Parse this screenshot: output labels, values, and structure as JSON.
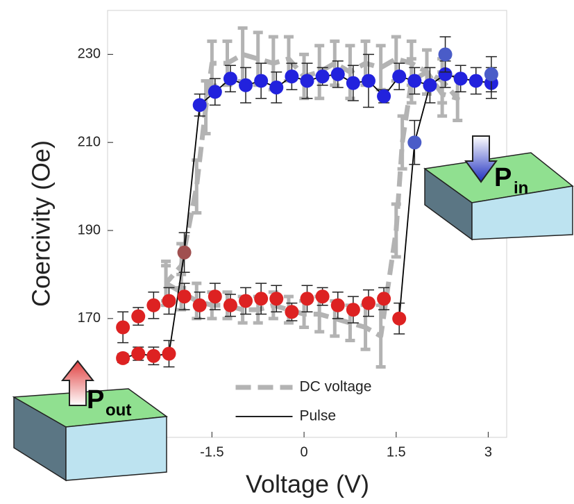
{
  "chart_data": {
    "type": "errorbar_line",
    "xlabel": "Voltage (V)",
    "ylabel": "Coercivity (Oe)",
    "xlim": [
      -3.2,
      3.3
    ],
    "xticks": [
      -1.5,
      0,
      1.5,
      3
    ],
    "ylim": [
      143,
      240
    ],
    "yticks": [
      170,
      190,
      210,
      230
    ],
    "legend": "lower center",
    "series": [
      {
        "name": "DC voltage",
        "color": "#b3b3b3",
        "dashed": true,
        "x": [
          -2.25,
          -2,
          -1.75,
          -1.5,
          -1.25,
          -1,
          -0.75,
          -0.5,
          -0.25,
          0,
          0.25,
          0.5,
          0.75,
          1,
          1.25,
          1.5,
          1.6,
          1.75,
          2,
          2.25,
          2.5,
          2.25,
          2,
          1.75,
          1.5,
          1.25,
          1,
          0.75,
          0.5,
          0.25,
          0,
          -0.25,
          -0.5,
          -0.75,
          -1,
          -1.25,
          -1.5,
          -1.6,
          -1.75,
          -2,
          -2.25
        ],
        "values": [
          178,
          176,
          174,
          173,
          173,
          172,
          172,
          173,
          172,
          171,
          171,
          170,
          169,
          168,
          166,
          190,
          210,
          224,
          226,
          224,
          220,
          221,
          226,
          228,
          229,
          227,
          228,
          226,
          228,
          226,
          225,
          229,
          228,
          229,
          230,
          228,
          228,
          218,
          200,
          182,
          178
        ],
        "errors": [
          4,
          4,
          4,
          3,
          3,
          3,
          3,
          3,
          3,
          3,
          4,
          4,
          4,
          5,
          7,
          6,
          6,
          5,
          5,
          5,
          5,
          5,
          5,
          5,
          5,
          5,
          5,
          6,
          5,
          6,
          5,
          5,
          6,
          6,
          6,
          5,
          5,
          6,
          6,
          5,
          5
        ]
      },
      {
        "name": "Pulse",
        "color": "#000000",
        "dashed": false,
        "x": [
          -2.95,
          -2.7,
          -2.45,
          -2.2,
          -1.95,
          -1.7,
          -1.45,
          -1.2,
          -0.95,
          -0.7,
          -0.45,
          -0.2,
          0.05,
          0.3,
          0.55,
          0.8,
          1.05,
          1.3,
          1.55,
          1.8,
          2.05,
          2.3,
          2.55,
          2.8,
          3.05,
          null,
          1.55,
          1.8,
          2.05
        ],
        "values": [
          161,
          162,
          161.5,
          162,
          185,
          218.5,
          221.5,
          224.5,
          223,
          224,
          222.5,
          225,
          224,
          225,
          225.5,
          223.5,
          224,
          220.5,
          225,
          224,
          223,
          225.5,
          224.5,
          224,
          223.5,
          null,
          170,
          210,
          223
        ]
      }
    ],
    "markers": [
      {
        "color": "#dd2222",
        "x": [
          -2.95,
          -2.7,
          -2.45,
          -2.2,
          -1.95,
          -1.7,
          -1.45,
          -1.2,
          -0.95,
          -0.7,
          -0.45,
          -0.2,
          0.05,
          0.3,
          0.55,
          0.8,
          1.05,
          1.3,
          1.55
        ],
        "values": [
          168,
          170.5,
          173,
          174,
          175,
          173,
          175,
          173,
          174,
          174.5,
          174.5,
          171.5,
          174.5,
          175,
          173,
          172,
          173.5,
          174.5,
          170
        ],
        "errors": [
          3.5,
          2,
          3,
          3,
          3,
          3,
          3,
          2.5,
          3,
          3.5,
          3,
          2,
          3,
          2,
          3,
          3,
          3,
          2.5,
          3.5
        ]
      },
      {
        "color": "#dd2222",
        "x": [
          -2.95,
          -2.7,
          -2.45,
          -2.2
        ],
        "values": [
          161,
          162,
          161.5,
          162
        ],
        "errors": [
          1,
          1.5,
          2,
          3
        ]
      },
      {
        "color": "#a05050",
        "x": [
          -1.95
        ],
        "values": [
          185
        ],
        "errors": [
          4.5
        ]
      },
      {
        "color": "#2222dd",
        "x": [
          -1.7,
          -1.45,
          -1.2,
          -0.95,
          -0.7,
          -0.45,
          -0.2,
          0.05,
          0.3,
          0.55,
          0.8,
          1.05,
          1.3,
          1.55,
          1.8,
          2.05,
          2.3,
          2.55,
          2.8,
          3.05
        ],
        "values": [
          218.5,
          221.5,
          224.5,
          223,
          224,
          222.5,
          225,
          224,
          225,
          225.5,
          223.5,
          224,
          220.5,
          225,
          224,
          223,
          225.5,
          224.5,
          224,
          223.5
        ],
        "errors": [
          2.5,
          3,
          3,
          4,
          4,
          3.5,
          3,
          4,
          2,
          3,
          4,
          6,
          1.5,
          3,
          3,
          4,
          3,
          3,
          3,
          3.5
        ]
      },
      {
        "color": "#4a5cc8",
        "x": [
          1.8,
          2.3,
          3.05
        ],
        "values": [
          210,
          230,
          225.5
        ],
        "errors": [
          5,
          4,
          4
        ]
      }
    ],
    "insets": [
      {
        "label": "P",
        "subscript": "out"
      },
      {
        "label": "P",
        "subscript": "in"
      }
    ]
  }
}
